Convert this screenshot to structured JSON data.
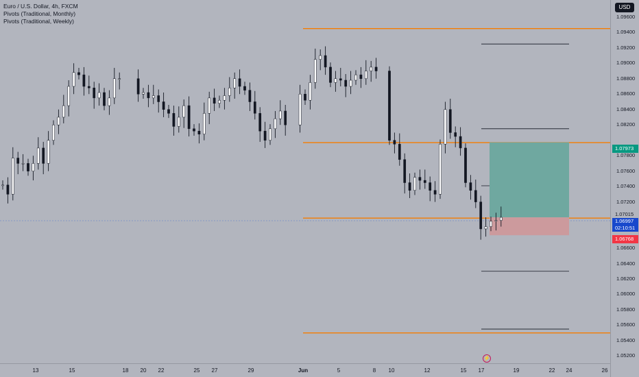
{
  "legend": {
    "title": "Euro / U.S. Dollar, 4h, FXCM",
    "indicators": [
      "Pivots (Traditional, Monthly)",
      "Pivots (Traditional, Weekly)"
    ]
  },
  "currency": "USD",
  "price_axis": {
    "ticks": [
      "1.09600",
      "1.09400",
      "1.09200",
      "1.09000",
      "1.08800",
      "1.08600",
      "1.08400",
      "1.08200",
      "1.07800",
      "1.07600",
      "1.07400",
      "1.07200",
      "1.06600",
      "1.06400",
      "1.06200",
      "1.06000",
      "1.05800",
      "1.05600",
      "1.05400",
      "1.05200"
    ],
    "target_label": "1.07973",
    "current_label": "1.07015",
    "last_label": "1.06997",
    "countdown": "02:10:51",
    "stop_label": "1.06768"
  },
  "time_axis": {
    "ticks": [
      "13",
      "15",
      "18",
      "20",
      "22",
      "25",
      "27",
      "29",
      "Jun",
      "5",
      "8",
      "10",
      "12",
      "15",
      "17",
      "19",
      "22",
      "24",
      "26"
    ]
  },
  "colors": {
    "background": "#b2b5be",
    "pivot_orange": "#f57c00",
    "profit_zone": "#6fa8a0",
    "loss_zone": "#cc9a9d",
    "target_label_bg": "#089981",
    "current_label_bg": "#1848cc",
    "stop_label_bg": "#f23645"
  },
  "chart_data": {
    "type": "candlestick",
    "symbol": "Euro / U.S. Dollar",
    "interval": "4h",
    "ylim": [
      1.0515,
      1.0975
    ],
    "monthly_pivot_levels": [
      1.0945,
      1.0797,
      1.0699,
      1.055
    ],
    "weekly_pivot_levels": [
      1.0925,
      1.0815,
      1.0741,
      1.063,
      1.0555
    ],
    "position": {
      "entry": 1.07,
      "target": 1.07973,
      "stop": 1.06768
    },
    "current_price": 1.06997,
    "candles_approx_close": [
      1.0742,
      1.073,
      1.0777,
      1.077,
      1.077,
      1.076,
      1.077,
      1.079,
      1.077,
      1.08,
      1.082,
      1.083,
      1.0845,
      1.087,
      1.0888,
      1.0885,
      1.087,
      1.0868,
      1.0855,
      1.0862,
      1.0845,
      1.0855,
      1.088,
      1.088,
      1.086,
      1.0862,
      1.0855,
      1.0858,
      1.085,
      1.084,
      1.0835,
      1.0818,
      1.083,
      1.0845,
      1.0815,
      1.0812,
      1.0808,
      1.0835,
      1.0855,
      1.0848,
      1.0852,
      1.0858,
      1.0868,
      1.088,
      1.087,
      1.0865,
      1.085,
      1.0835,
      1.0812,
      1.08,
      1.0815,
      1.0828,
      1.0838,
      1.082,
      1.086,
      1.0852,
      1.0875,
      1.0905,
      1.091,
      1.0895,
      1.0875,
      1.088,
      1.0878,
      1.087,
      1.0878,
      1.0885,
      1.088,
      1.089,
      1.0895,
      1.089,
      1.08,
      1.0795,
      1.0775,
      1.0745,
      1.0735,
      1.0752,
      1.0748,
      1.0745,
      1.0735,
      1.073,
      1.0795,
      1.084,
      1.081,
      1.0805,
      1.079,
      1.0745,
      1.0735,
      1.072,
      1.0685,
      1.0688,
      1.0695,
      1.0696,
      1.07
    ]
  }
}
